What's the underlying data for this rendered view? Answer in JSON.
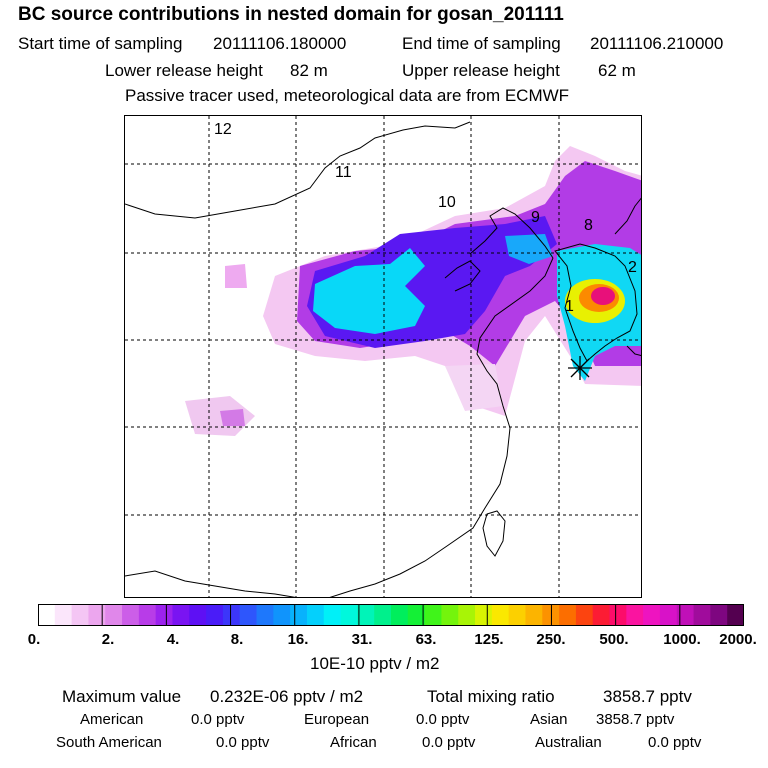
{
  "chart_data": {
    "type": "heatmap",
    "title": "BC  source contributions in nested domain for gosan_201111",
    "sampling": {
      "start_label": "Start time of sampling",
      "start_value": "20111106.180000",
      "end_label": "End time of sampling",
      "end_value": "20111106.210000"
    },
    "release": {
      "lower_label": "Lower release height",
      "lower_value": "82 m",
      "upper_label": "Upper release height",
      "upper_value": "62 m"
    },
    "note": "Passive tracer used, meteorological data are from ECMWF",
    "colorbar": {
      "unit_label": "10E-10 pptv / m2",
      "tick_labels": [
        "0.",
        "2.",
        "4.",
        "8.",
        "16.",
        "31.",
        "63.",
        "125.",
        "250.",
        "500.",
        "1000.",
        "2000."
      ],
      "colors": [
        "#ffffff",
        "#fbe6fb",
        "#f4c6f4",
        "#eca6ee",
        "#e087ea",
        "#cc5ee8",
        "#b83ce8",
        "#9c22ee",
        "#7a14f2",
        "#5e10f4",
        "#4a1cf8",
        "#3c36fa",
        "#2e56fc",
        "#1e78fc",
        "#1094fc",
        "#08b2fc",
        "#04d0fc",
        "#00f0f8",
        "#00f8dc",
        "#00f4b8",
        "#00f08c",
        "#00ee5c",
        "#14f036",
        "#40f41a",
        "#74f40c",
        "#a8f406",
        "#d8f402",
        "#fae800",
        "#fcd000",
        "#fcb400",
        "#fc9200",
        "#fc6e00",
        "#fc4410",
        "#fc1c34",
        "#fc0c6a",
        "#fa14a0",
        "#ee14c0",
        "#d812c8",
        "#c010b8",
        "#a00c9c",
        "#7e0680",
        "#540050"
      ]
    },
    "trajectory_labels": [
      "12",
      "11",
      "10",
      "9",
      "8",
      "2",
      "1"
    ],
    "receptor": "gosan",
    "max_label": "Maximum value",
    "max_value": "0.232E-06 pptv / m2",
    "total_label": "Total mixing ratio",
    "total_value": "3858.7 pptv",
    "sources": [
      {
        "name": "American",
        "value": "0.0 pptv"
      },
      {
        "name": "European",
        "value": "0.0 pptv"
      },
      {
        "name": "Asian",
        "value": "3858.7 pptv"
      },
      {
        "name": "South American",
        "value": "0.0 pptv"
      },
      {
        "name": "African",
        "value": "0.0 pptv"
      },
      {
        "name": "Australian",
        "value": "0.0 pptv"
      }
    ]
  }
}
